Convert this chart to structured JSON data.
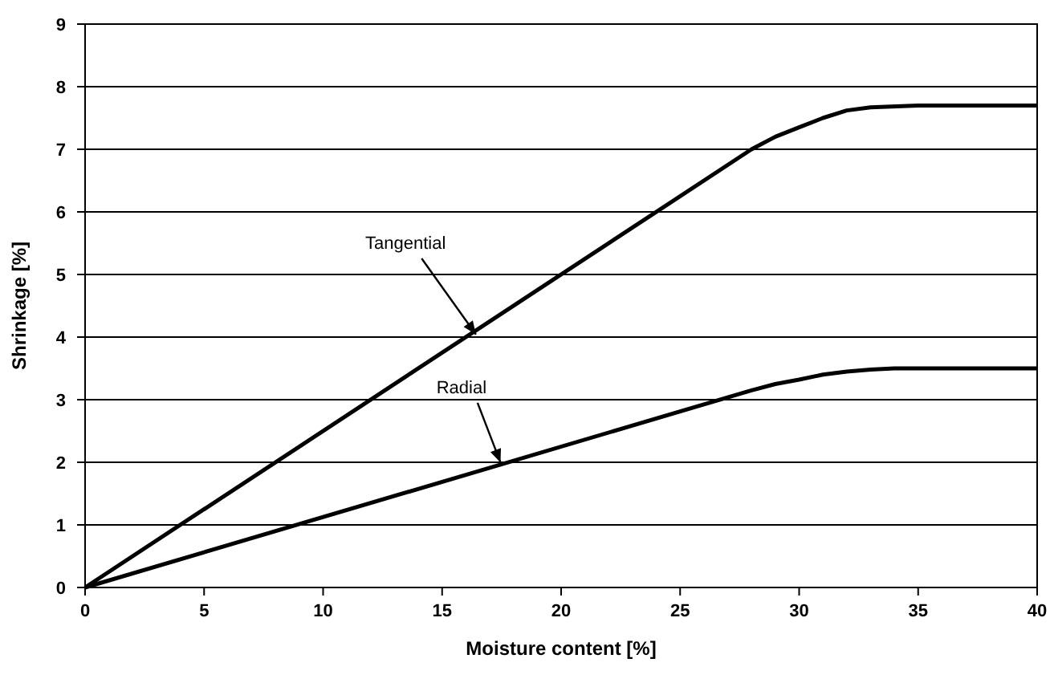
{
  "chart_data": {
    "type": "line",
    "xlabel": "Moisture content [%]",
    "ylabel": "Shrinkage [%]",
    "series": [
      {
        "color": "#000000",
        "x": [
          0,
          28,
          29,
          30,
          31,
          32,
          33,
          35,
          40
        ],
        "values": [
          0,
          7.0,
          7.2,
          7.35,
          7.5,
          7.62,
          7.67,
          7.7,
          7.7
        ]
      },
      {
        "color": "#000000",
        "x": [
          0,
          28,
          29,
          30,
          31,
          32,
          33,
          34,
          40
        ],
        "values": [
          0,
          3.15,
          3.25,
          3.32,
          3.4,
          3.45,
          3.48,
          3.5,
          3.5
        ]
      }
    ],
    "xlim": [
      0,
      40
    ],
    "xticks": [
      0,
      5,
      10,
      15,
      20,
      25,
      30,
      35,
      40
    ],
    "ylim": [
      0,
      9
    ],
    "yticks": [
      0,
      1,
      2,
      3,
      4,
      5,
      6,
      7,
      8,
      9
    ],
    "grid": "y",
    "marker": "none",
    "line_style": "solid",
    "annotations": [
      {
        "text": "Tangential",
        "x": 16.5,
        "y": 4.0
      },
      {
        "text": "Radial",
        "x": 17.5,
        "y": 1.95
      }
    ]
  }
}
